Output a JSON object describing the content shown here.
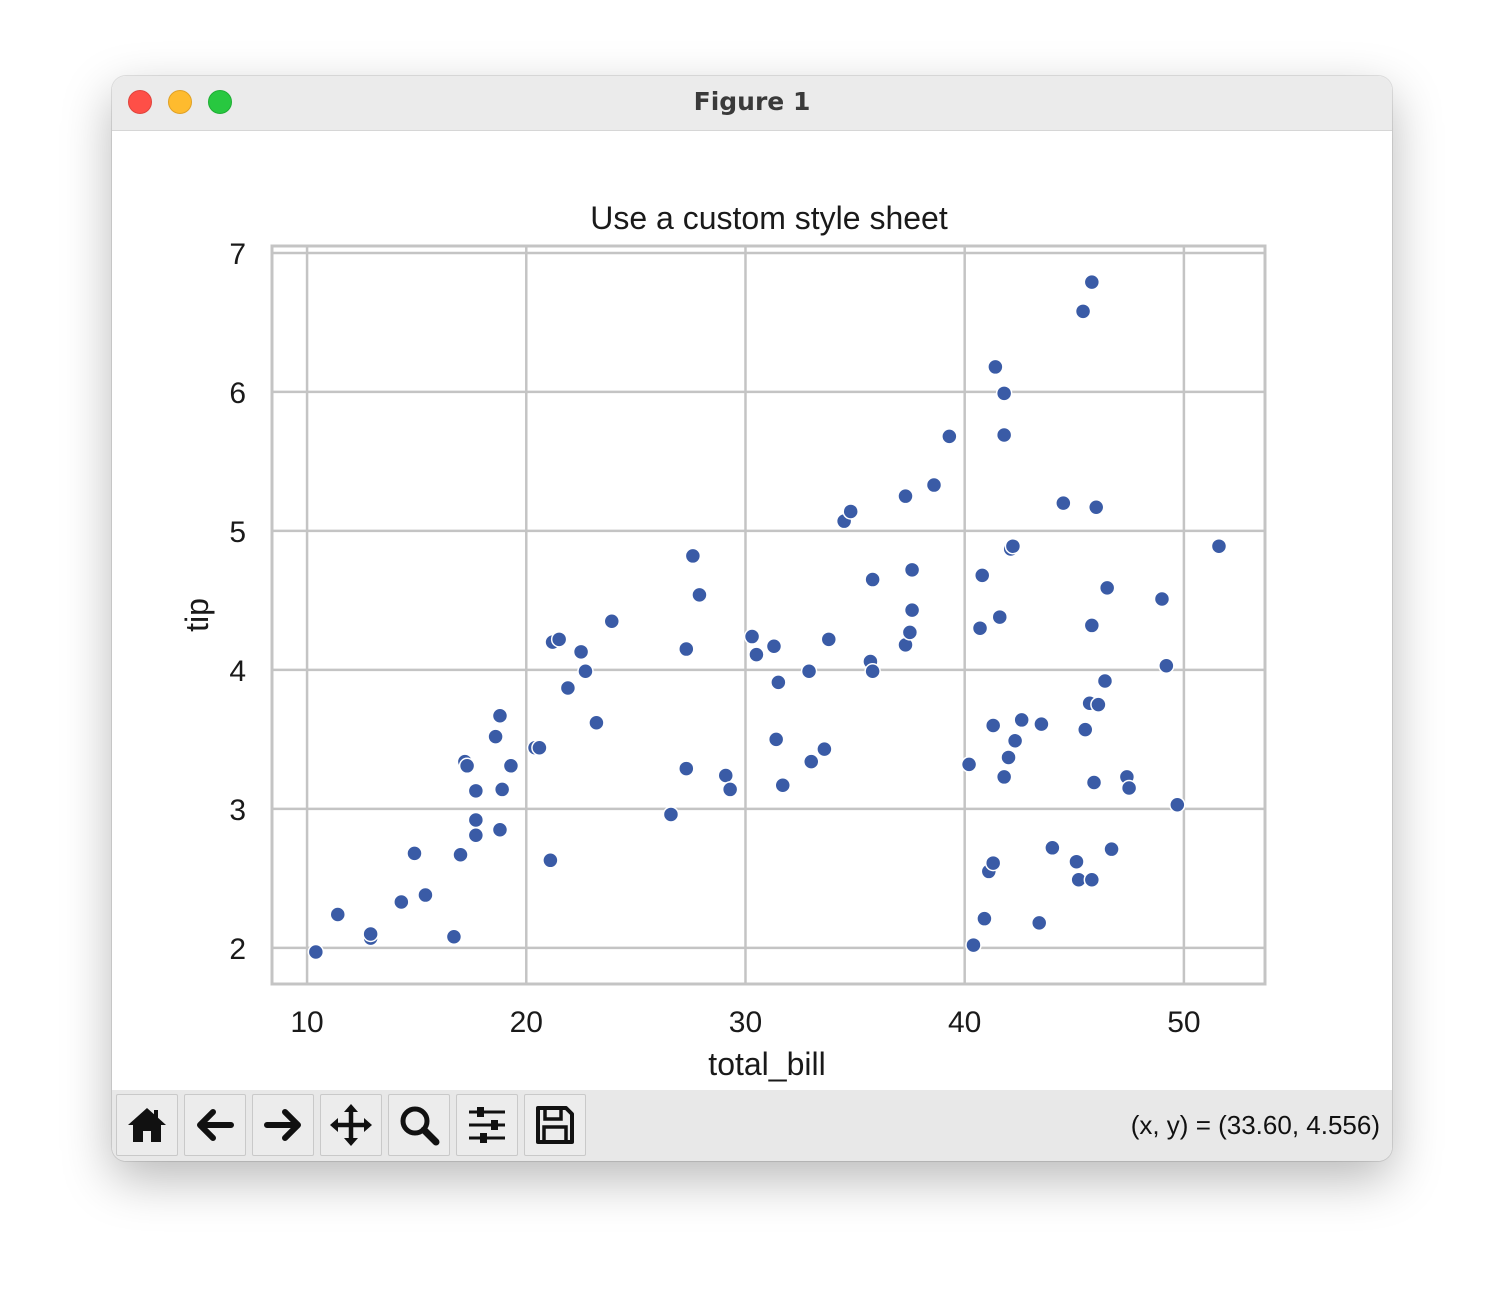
{
  "window": {
    "title": "Figure 1"
  },
  "toolbar": {
    "buttons": [
      {
        "name": "home-button",
        "icon": "home-icon"
      },
      {
        "name": "back-button",
        "icon": "arrow-left-icon"
      },
      {
        "name": "forward-button",
        "icon": "arrow-right-icon"
      },
      {
        "name": "pan-button",
        "icon": "move-icon"
      },
      {
        "name": "zoom-button",
        "icon": "magnifier-icon"
      },
      {
        "name": "configure-subplots-button",
        "icon": "sliders-icon"
      },
      {
        "name": "save-button",
        "icon": "floppy-disk-icon"
      }
    ],
    "coordinates": "(x, y) = (33.60, 4.556)"
  },
  "chart_data": {
    "type": "scatter",
    "title": "Use a custom style sheet",
    "xlabel": "total_bill",
    "ylabel": "tip",
    "xlim": [
      8.4,
      53.7
    ],
    "ylim": [
      1.74,
      7.05
    ],
    "xticks": [
      10,
      20,
      30,
      40,
      50
    ],
    "yticks": [
      2,
      3,
      4,
      5,
      6,
      7
    ],
    "grid": true,
    "marker_color": "#3a5ba6",
    "marker_edge_color": "#ffffff",
    "points": [
      [
        10.4,
        1.97
      ],
      [
        11.4,
        2.24
      ],
      [
        12.9,
        2.07
      ],
      [
        12.9,
        2.1
      ],
      [
        14.3,
        2.33
      ],
      [
        14.9,
        2.68
      ],
      [
        15.4,
        2.38
      ],
      [
        16.7,
        2.08
      ],
      [
        17.0,
        2.67
      ],
      [
        17.2,
        3.34
      ],
      [
        17.3,
        3.31
      ],
      [
        17.7,
        2.92
      ],
      [
        17.7,
        2.81
      ],
      [
        17.7,
        3.13
      ],
      [
        18.6,
        3.52
      ],
      [
        18.8,
        3.67
      ],
      [
        18.9,
        3.14
      ],
      [
        18.8,
        2.85
      ],
      [
        19.3,
        3.31
      ],
      [
        20.4,
        3.44
      ],
      [
        20.6,
        3.44
      ],
      [
        21.1,
        2.63
      ],
      [
        21.2,
        4.2
      ],
      [
        21.5,
        4.22
      ],
      [
        21.9,
        3.87
      ],
      [
        22.5,
        4.13
      ],
      [
        22.7,
        3.99
      ],
      [
        23.2,
        3.62
      ],
      [
        23.9,
        4.35
      ],
      [
        26.6,
        2.96
      ],
      [
        27.3,
        3.29
      ],
      [
        27.3,
        4.15
      ],
      [
        27.6,
        4.82
      ],
      [
        27.9,
        4.54
      ],
      [
        29.1,
        3.24
      ],
      [
        29.3,
        3.14
      ],
      [
        30.3,
        4.24
      ],
      [
        30.5,
        4.11
      ],
      [
        31.3,
        4.17
      ],
      [
        31.4,
        3.5
      ],
      [
        31.5,
        3.91
      ],
      [
        31.7,
        3.17
      ],
      [
        32.9,
        3.99
      ],
      [
        33.0,
        3.34
      ],
      [
        33.6,
        3.43
      ],
      [
        33.8,
        4.22
      ],
      [
        34.5,
        5.07
      ],
      [
        34.8,
        5.14
      ],
      [
        35.7,
        4.06
      ],
      [
        35.8,
        3.99
      ],
      [
        35.8,
        4.65
      ],
      [
        37.3,
        5.25
      ],
      [
        37.3,
        4.18
      ],
      [
        37.5,
        4.27
      ],
      [
        37.6,
        4.43
      ],
      [
        37.6,
        4.72
      ],
      [
        38.6,
        5.33
      ],
      [
        39.3,
        5.68
      ],
      [
        40.2,
        3.32
      ],
      [
        40.4,
        2.02
      ],
      [
        40.7,
        4.3
      ],
      [
        40.8,
        4.68
      ],
      [
        40.9,
        2.21
      ],
      [
        41.1,
        2.55
      ],
      [
        41.3,
        2.61
      ],
      [
        41.3,
        3.6
      ],
      [
        41.4,
        6.18
      ],
      [
        41.6,
        4.38
      ],
      [
        41.8,
        5.69
      ],
      [
        41.8,
        3.23
      ],
      [
        41.8,
        5.99
      ],
      [
        42.0,
        3.37
      ],
      [
        42.1,
        4.87
      ],
      [
        42.2,
        4.89
      ],
      [
        42.3,
        3.49
      ],
      [
        42.6,
        3.64
      ],
      [
        43.4,
        2.18
      ],
      [
        43.5,
        3.61
      ],
      [
        44.0,
        2.72
      ],
      [
        44.5,
        5.2
      ],
      [
        45.1,
        2.62
      ],
      [
        45.2,
        2.49
      ],
      [
        45.4,
        6.58
      ],
      [
        45.5,
        3.57
      ],
      [
        45.7,
        3.76
      ],
      [
        45.8,
        6.79
      ],
      [
        45.8,
        2.49
      ],
      [
        45.8,
        4.32
      ],
      [
        45.9,
        3.19
      ],
      [
        46.0,
        5.17
      ],
      [
        46.1,
        3.75
      ],
      [
        46.4,
        3.92
      ],
      [
        46.5,
        4.59
      ],
      [
        46.7,
        2.71
      ],
      [
        47.4,
        3.23
      ],
      [
        47.5,
        3.15
      ],
      [
        49.0,
        4.51
      ],
      [
        49.2,
        4.03
      ],
      [
        49.7,
        3.03
      ],
      [
        51.6,
        4.89
      ]
    ]
  }
}
